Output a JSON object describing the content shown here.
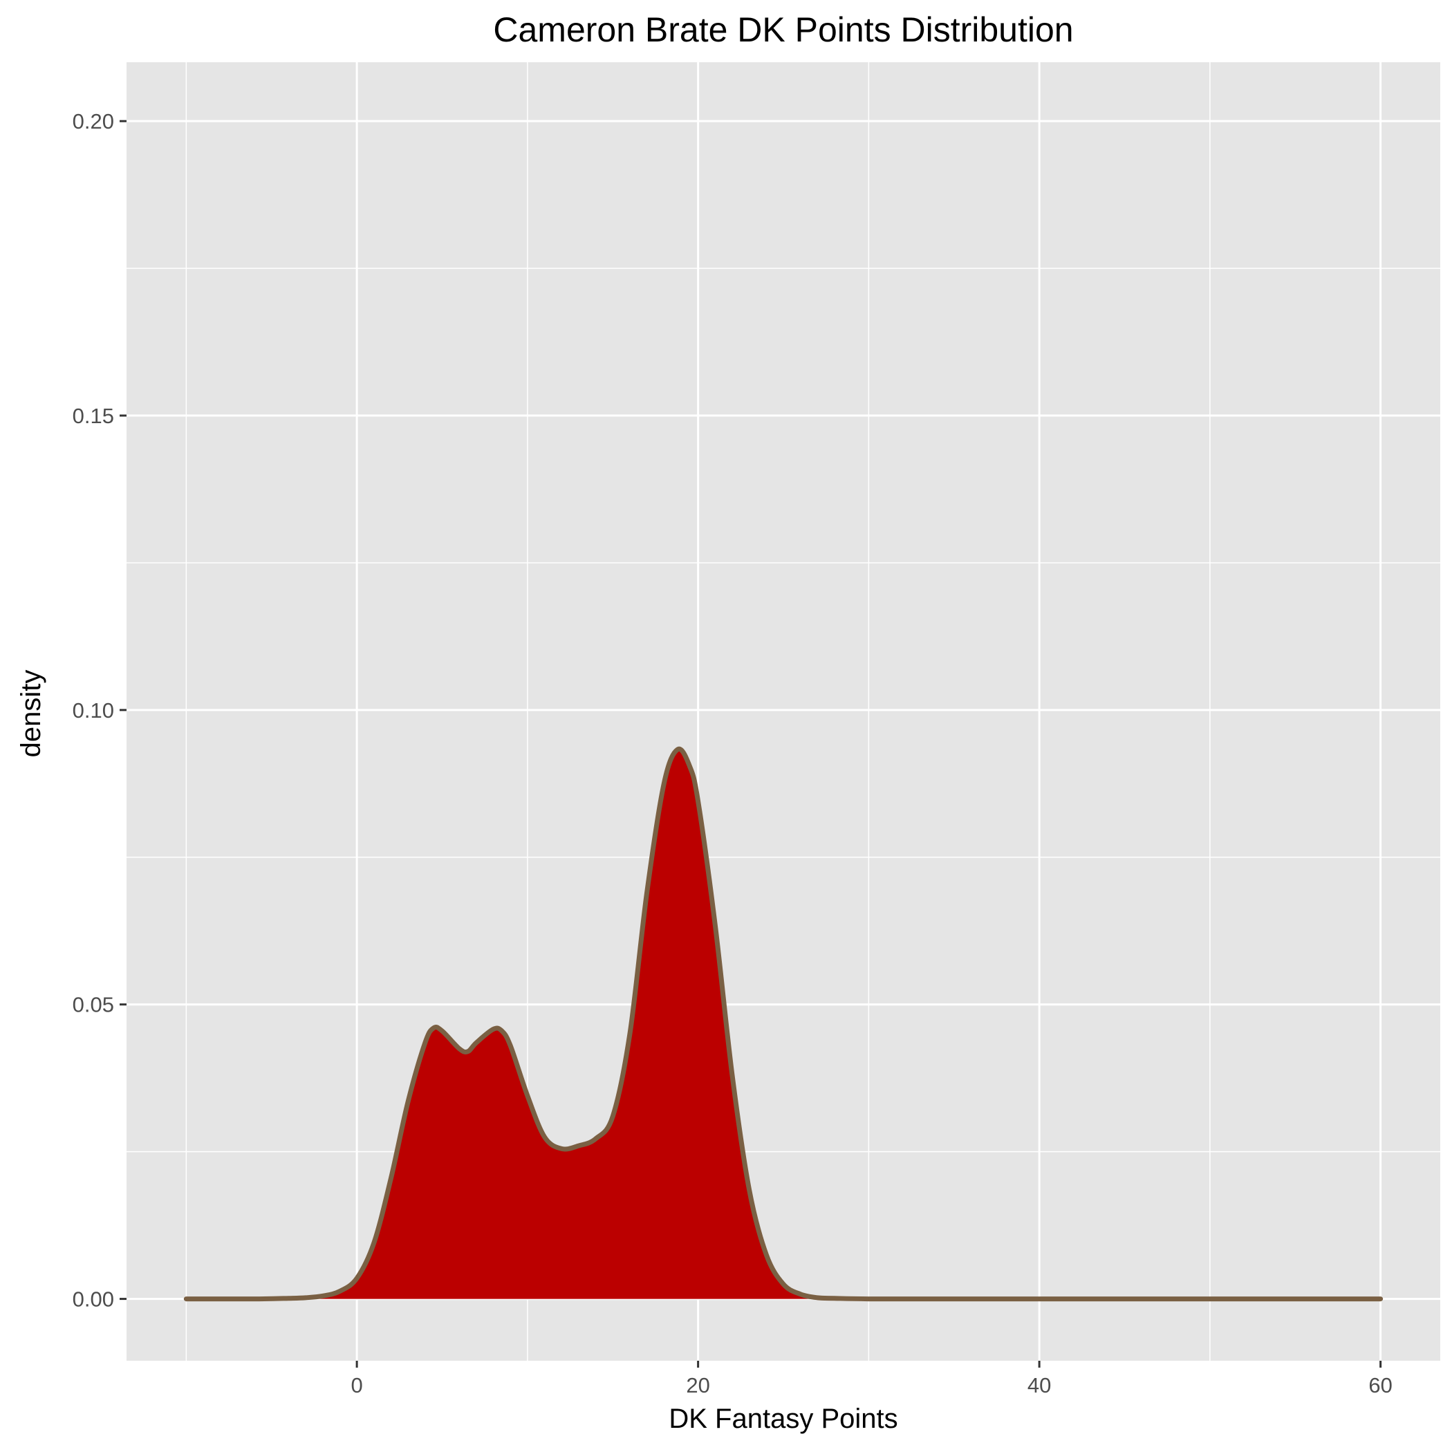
{
  "chart_data": {
    "type": "area",
    "title": "Cameron Brate DK Points Distribution",
    "xlabel": "DK Fantasy Points",
    "ylabel": "density",
    "xlim": [
      -13.5,
      63.5
    ],
    "ylim": [
      -0.0105,
      0.21
    ],
    "x_ticks": [
      0,
      20,
      40,
      60
    ],
    "x_tick_labels": [
      "0",
      "20",
      "40",
      "60"
    ],
    "x_minor_ticks": [
      -10,
      10,
      30,
      50
    ],
    "y_ticks": [
      0.0,
      0.05,
      0.1,
      0.15,
      0.2
    ],
    "y_tick_labels": [
      "0.00",
      "0.05",
      "0.10",
      "0.15",
      "0.20"
    ],
    "y_minor_ticks": [
      0.025,
      0.075,
      0.125,
      0.175
    ],
    "grid": true,
    "legend": "none",
    "series": [
      {
        "x": [
          -10,
          -6,
          -4,
          -3,
          -2,
          -1,
          0,
          1,
          2,
          3,
          4,
          4.5,
          5,
          6,
          6.5,
          7,
          8,
          8.5,
          9,
          10,
          11,
          12,
          13,
          14,
          15,
          16,
          17,
          18,
          18.8,
          19.5,
          20,
          21,
          22,
          23,
          24,
          25,
          26,
          27,
          28,
          30,
          35,
          40,
          50,
          60
        ],
        "y": [
          0.0,
          0.0,
          0.0001,
          0.0002,
          0.0005,
          0.0013,
          0.0035,
          0.0095,
          0.0205,
          0.0335,
          0.0435,
          0.046,
          0.0455,
          0.0425,
          0.042,
          0.0435,
          0.0458,
          0.0455,
          0.043,
          0.0345,
          0.0275,
          0.0255,
          0.026,
          0.0272,
          0.031,
          0.045,
          0.069,
          0.0875,
          0.0933,
          0.0905,
          0.0845,
          0.0635,
          0.038,
          0.0185,
          0.0075,
          0.0025,
          0.0008,
          0.0002,
          0.0001,
          0.0,
          0.0,
          0.0,
          0.0,
          0.0
        ]
      }
    ]
  },
  "colors": {
    "panel_background": "#e5e5e5",
    "grid_line": "#ffffff",
    "fill": "#bb0000",
    "outline": "#7a6043",
    "tick_mark": "#333333"
  }
}
